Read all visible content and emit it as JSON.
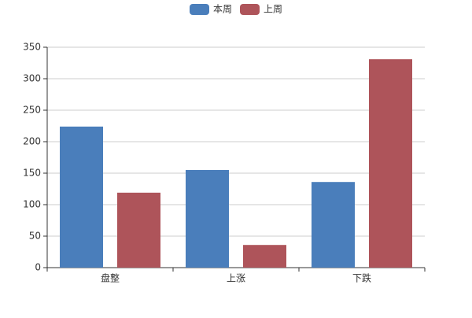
{
  "chart_data": {
    "type": "bar",
    "categories": [
      "盘整",
      "上涨",
      "下跌"
    ],
    "series": [
      {
        "name": "本周",
        "color": "#4a7ebb",
        "values": [
          224,
          155,
          136
        ]
      },
      {
        "name": "上周",
        "color": "#ae545a",
        "values": [
          119,
          36,
          331
        ]
      }
    ],
    "ylim": [
      0,
      350
    ],
    "yticks": [
      0,
      50,
      100,
      150,
      200,
      250,
      300,
      350
    ],
    "grid": true,
    "legend": "top"
  }
}
